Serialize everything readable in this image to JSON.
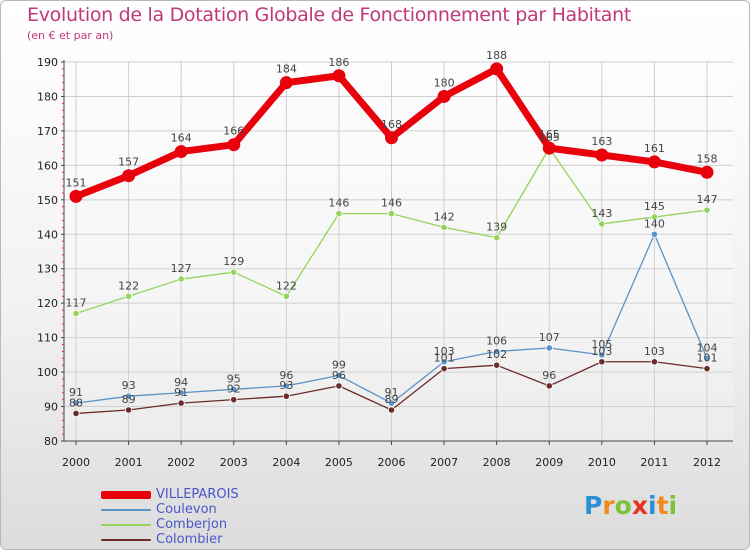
{
  "title": "Evolution de la Dotation Globale de Fonctionnement par Habitant",
  "subtitle": "(en € et par an)",
  "logo": "Proxiti",
  "chart_data": {
    "type": "line",
    "categories": [
      "2000",
      "2001",
      "2002",
      "2003",
      "2004",
      "2005",
      "2006",
      "2007",
      "2008",
      "2009",
      "2010",
      "2011",
      "2012"
    ],
    "ylim": [
      80,
      190
    ],
    "yticks": [
      80,
      90,
      100,
      110,
      120,
      130,
      140,
      150,
      160,
      170,
      180,
      190
    ],
    "grid": true,
    "series": [
      {
        "name": "VILLEPAROIS",
        "color": "#e8000b",
        "values": [
          151,
          157,
          164,
          166,
          184,
          186,
          168,
          180,
          188,
          165,
          163,
          161,
          158
        ]
      },
      {
        "name": "Coulevon",
        "color": "#5b92c8",
        "values": [
          91,
          93,
          94,
          95,
          96,
          99,
          91,
          103,
          106,
          107,
          105,
          140,
          104
        ]
      },
      {
        "name": "Comberjon",
        "color": "#93d45a",
        "values": [
          117,
          122,
          127,
          129,
          122,
          146,
          146,
          142,
          139,
          165,
          143,
          145,
          147
        ]
      },
      {
        "name": "Colombier",
        "color": "#6b2b2b",
        "values": [
          88,
          89,
          91,
          92,
          93,
          96,
          89,
          101,
          102,
          96,
          103,
          103,
          101
        ]
      }
    ]
  }
}
